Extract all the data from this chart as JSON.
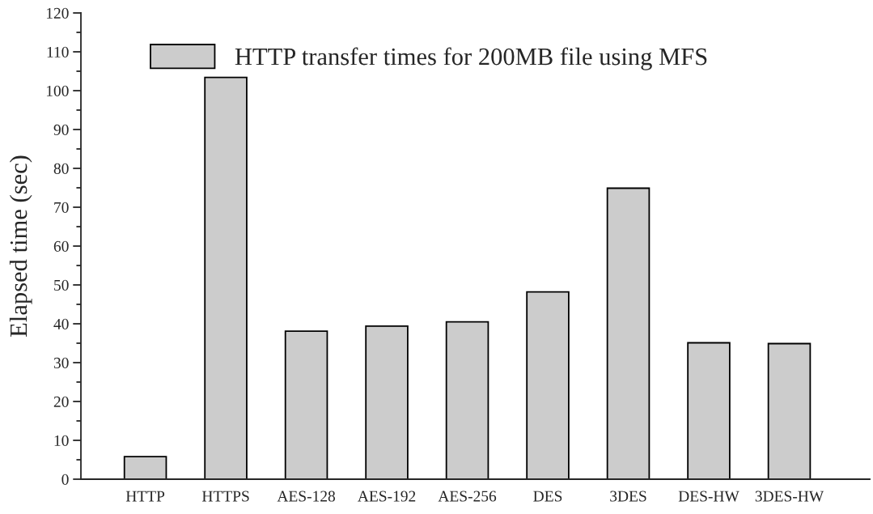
{
  "chart_data": {
    "type": "bar",
    "ylabel": "Elapsed time (sec)",
    "categories": [
      "HTTP",
      "HTTPS",
      "AES-128",
      "AES-192",
      "AES-256",
      "DES",
      "3DES",
      "DES-HW",
      "3DES-HW"
    ],
    "series": [
      {
        "name": "HTTP transfer times for 200MB file using MFS",
        "color": "#cccccc",
        "values": [
          5.8,
          103.4,
          38.1,
          39.4,
          40.5,
          48.2,
          74.9,
          35.1,
          34.9
        ]
      }
    ],
    "ylim": [
      0,
      120
    ],
    "yticks": [
      0,
      10,
      20,
      30,
      40,
      50,
      60,
      70,
      80,
      90,
      100,
      110,
      120
    ],
    "grid": false,
    "legend": "top left"
  }
}
